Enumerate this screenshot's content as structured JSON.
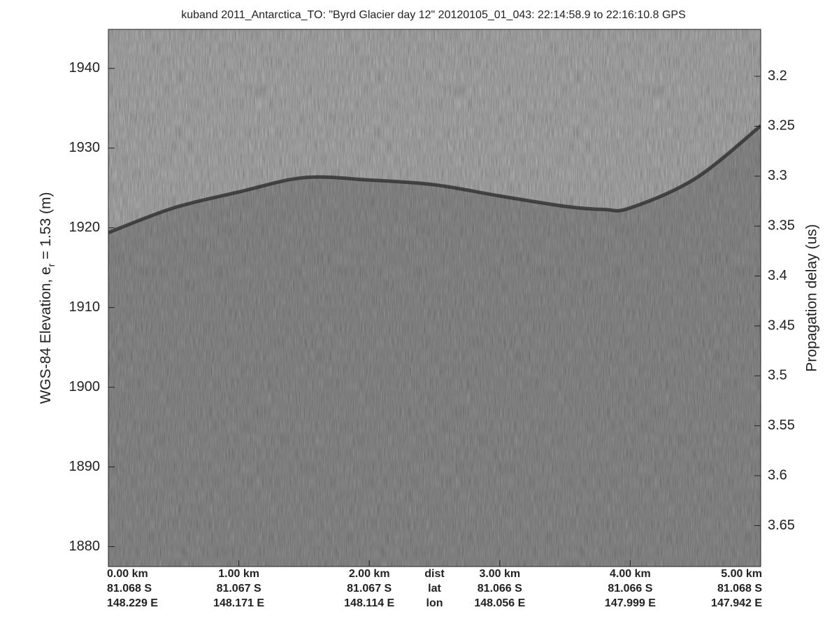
{
  "chart_data": {
    "type": "echogram",
    "title": "kuband 2011_Antarctica_TO: \"Byrd Glacier day 12\"  20120105_01_043: 22:14:58.9 to 22:16:10.8 GPS",
    "ylabel_parts": [
      "WGS-84 Elevation, e",
      "r",
      " = 1.53 (m)"
    ],
    "y2label": "Propagation delay (us)",
    "xlim": [
      0,
      5
    ],
    "xticks": [
      {
        "value": 0,
        "label": "0.00 km"
      },
      {
        "value": 1,
        "label": "1.00 km"
      },
      {
        "value": 2,
        "label": "2.00 km"
      },
      {
        "value": 3,
        "label": "3.00 km"
      },
      {
        "value": 4,
        "label": "4.00 km"
      },
      {
        "value": 5,
        "label": "5.00 km"
      }
    ],
    "xlabel": "dist",
    "lat_label": "lat",
    "lon_label": "lon",
    "lat": [
      "81.068 S",
      "81.067 S",
      "81.067 S",
      "81.066 S",
      "81.066 S",
      "81.068 S"
    ],
    "lon": [
      "148.229 E",
      "148.171 E",
      "148.114 E",
      "148.056 E",
      "147.999 E",
      "147.942 E"
    ],
    "ylim": [
      1877.5,
      1944.9
    ],
    "yticks": [
      1880,
      1890,
      1900,
      1910,
      1920,
      1930,
      1940
    ],
    "y2lim": [
      3.153,
      3.691
    ],
    "y2_reversed": true,
    "y2ticks": [
      3.2,
      3.25,
      3.3,
      3.35,
      3.4,
      3.45,
      3.5,
      3.55,
      3.6,
      3.65
    ],
    "surface": {
      "x": [
        0,
        0.5,
        1,
        1.5,
        2,
        2.5,
        3,
        3.5,
        3.8,
        4,
        4.5,
        5
      ],
      "values": [
        1919.4,
        1922.5,
        1924.5,
        1926.3,
        1926,
        1925.4,
        1924,
        1922.7,
        1922.3,
        1922.5,
        1926.2,
        1932.8
      ]
    }
  }
}
